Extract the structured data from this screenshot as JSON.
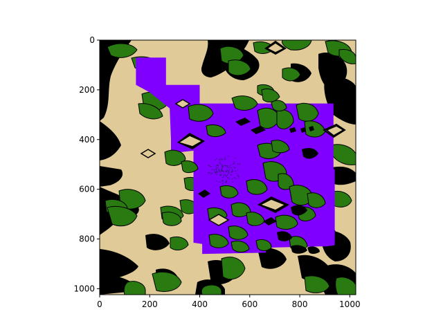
{
  "chart_data": {
    "type": "heatmap",
    "title": "",
    "xlabel": "",
    "ylabel": "",
    "xlim": [
      0,
      1024
    ],
    "ylim": [
      1024,
      0
    ],
    "y_inverted": true,
    "x_ticks": [
      0,
      200,
      400,
      600,
      800,
      1000
    ],
    "y_ticks": [
      0,
      200,
      400,
      600,
      800,
      1000
    ],
    "x_tick_labels": [
      "0",
      "200",
      "400",
      "600",
      "800",
      "1000"
    ],
    "y_tick_labels": [
      "0",
      "200",
      "400",
      "600",
      "800",
      "1000"
    ],
    "grid": false,
    "legend": "none",
    "colors": {
      "sand": "#e0cb98",
      "grass": "#2a7a12",
      "cliff": "#000000",
      "highlight": "#7f00ff",
      "dots": "#3a1780"
    },
    "highlight_region_vertices": [
      [
        145,
        70
      ],
      [
        265,
        70
      ],
      [
        265,
        180
      ],
      [
        400,
        180
      ],
      [
        400,
        255
      ],
      [
        935,
        255
      ],
      [
        935,
        520
      ],
      [
        940,
        520
      ],
      [
        940,
        825
      ],
      [
        905,
        830
      ],
      [
        875,
        830
      ],
      [
        665,
        835
      ],
      [
        665,
        855
      ],
      [
        410,
        860
      ],
      [
        410,
        820
      ],
      [
        375,
        815
      ],
      [
        375,
        445
      ],
      [
        285,
        455
      ],
      [
        285,
        400
      ],
      [
        280,
        275
      ],
      [
        200,
        210
      ],
      [
        145,
        180
      ]
    ]
  }
}
